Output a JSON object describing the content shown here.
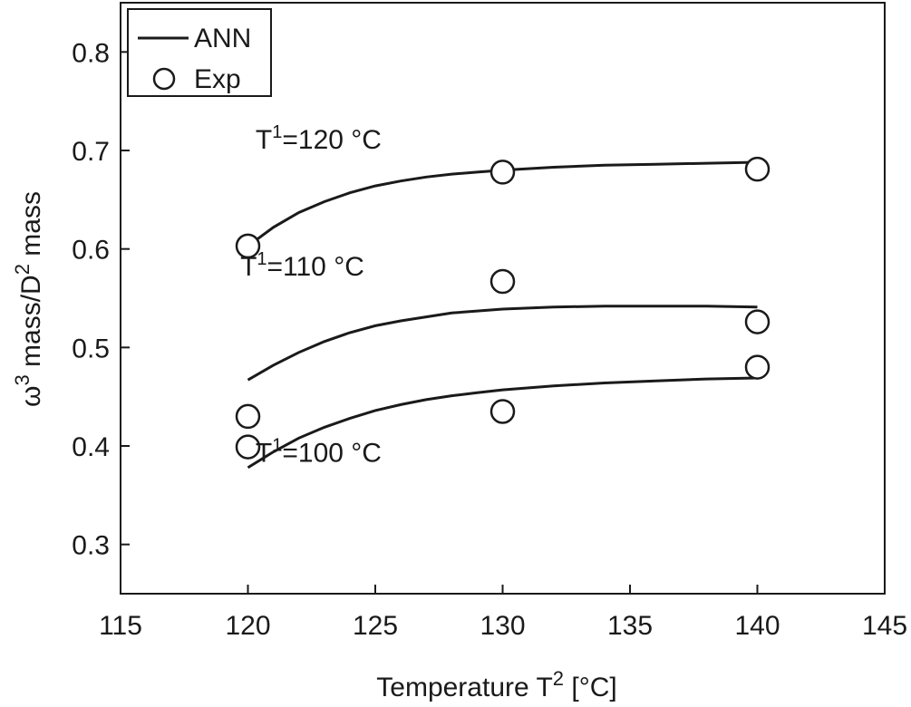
{
  "chart_data": {
    "type": "line",
    "title": "",
    "xlabel": "Temperature T",
    "xlabel_sup": "2",
    "xlabel_unit": " [°C]",
    "ylabel_prefix": "ω",
    "ylabel_sup1": "3",
    "ylabel_mid": " mass/D",
    "ylabel_sup2": "2",
    "ylabel_suffix": " mass",
    "xlim": [
      115,
      145
    ],
    "ylim": [
      0.25,
      0.85
    ],
    "xticks": [
      115,
      120,
      125,
      130,
      135,
      140,
      145
    ],
    "xtick_labels": [
      "115",
      "120",
      "125",
      "130",
      "135",
      "140",
      "145"
    ],
    "yticks": [
      0.3,
      0.4,
      0.5,
      0.6,
      0.7,
      0.8
    ],
    "ytick_labels": [
      "0.3",
      "0.4",
      "0.5",
      "0.6",
      "0.7",
      "0.8"
    ],
    "grid": false,
    "legend": {
      "placement": "top-left",
      "entries": [
        {
          "label": "ANN",
          "marker": "line"
        },
        {
          "label": "Exp",
          "marker": "circle"
        }
      ]
    },
    "series": [
      {
        "group": "T1=120",
        "ann_curve": [
          [
            120,
            0.603
          ],
          [
            121,
            0.622
          ],
          [
            122,
            0.637
          ],
          [
            123,
            0.648
          ],
          [
            124,
            0.657
          ],
          [
            125,
            0.664
          ],
          [
            126,
            0.669
          ],
          [
            127,
            0.673
          ],
          [
            128,
            0.676
          ],
          [
            129,
            0.678
          ],
          [
            130,
            0.68
          ],
          [
            132,
            0.683
          ],
          [
            134,
            0.685
          ],
          [
            136,
            0.686
          ],
          [
            138,
            0.687
          ],
          [
            140,
            0.688
          ]
        ],
        "exp_points": [
          [
            120,
            0.603
          ],
          [
            130,
            0.678
          ],
          [
            140,
            0.681
          ]
        ]
      },
      {
        "group": "T1=110",
        "ann_curve": [
          [
            120,
            0.467
          ],
          [
            121,
            0.482
          ],
          [
            122,
            0.495
          ],
          [
            123,
            0.506
          ],
          [
            124,
            0.515
          ],
          [
            125,
            0.522
          ],
          [
            126,
            0.527
          ],
          [
            127,
            0.531
          ],
          [
            128,
            0.535
          ],
          [
            129,
            0.537
          ],
          [
            130,
            0.539
          ],
          [
            132,
            0.541
          ],
          [
            134,
            0.542
          ],
          [
            136,
            0.542
          ],
          [
            138,
            0.542
          ],
          [
            140,
            0.541
          ]
        ],
        "exp_points": [
          [
            120,
            0.43
          ],
          [
            130,
            0.567
          ],
          [
            140,
            0.526
          ]
        ]
      },
      {
        "group": "T1=100",
        "ann_curve": [
          [
            120,
            0.378
          ],
          [
            121,
            0.394
          ],
          [
            122,
            0.408
          ],
          [
            123,
            0.419
          ],
          [
            124,
            0.428
          ],
          [
            125,
            0.436
          ],
          [
            126,
            0.442
          ],
          [
            127,
            0.447
          ],
          [
            128,
            0.451
          ],
          [
            129,
            0.454
          ],
          [
            130,
            0.457
          ],
          [
            132,
            0.461
          ],
          [
            134,
            0.464
          ],
          [
            136,
            0.466
          ],
          [
            138,
            0.468
          ],
          [
            140,
            0.469
          ]
        ],
        "exp_points": [
          [
            120,
            0.399
          ],
          [
            130,
            0.435
          ],
          [
            140,
            0.48
          ]
        ]
      }
    ],
    "annotations": [
      {
        "prefix": "T",
        "sup": "1",
        "text": "=120 °C",
        "x": 120.3,
        "y": 0.702
      },
      {
        "prefix": "T",
        "sup": "1",
        "text": "=110 °C",
        "x": 119.7,
        "y": 0.573
      },
      {
        "prefix": "T",
        "sup": "1",
        "text": "=100 °C",
        "x": 120.3,
        "y": 0.384
      }
    ]
  }
}
